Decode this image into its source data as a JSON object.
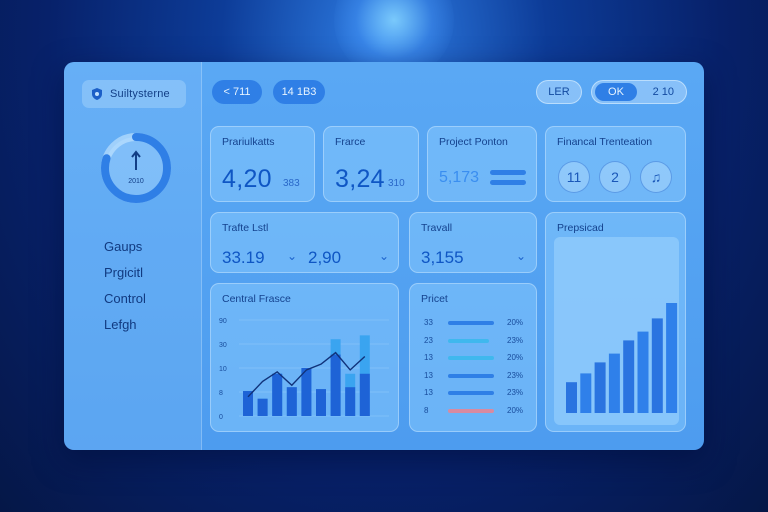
{
  "sidebar": {
    "logo_text": "Suiltysterne",
    "ring_value": "2010",
    "ring_icon": "up-arrow-icon",
    "ring_fraction": 0.8,
    "nav_items": [
      {
        "label": "Gaups"
      },
      {
        "label": "Prgicitl"
      },
      {
        "label": "Control"
      },
      {
        "label": "Lefgh"
      }
    ]
  },
  "topbar": {
    "pill_1": "< 711",
    "pill_2": "14 1B3",
    "pill_3": "LER",
    "pill_4": "OK",
    "pill_5": "2 10"
  },
  "cards": {
    "c1": {
      "title": "Prariulkatts",
      "value": "4,20",
      "sub": "383"
    },
    "c2": {
      "title": "Frarce",
      "value": "3,24",
      "sub": "310"
    },
    "c3": {
      "title": "Project Ponton",
      "value": "5,173"
    },
    "c4": {
      "title": "Financal Trenteation",
      "buttons": [
        "11",
        "2",
        "♫"
      ]
    },
    "c5": {
      "title": "Trafte Lstl",
      "value_1": "33.19",
      "value_2": "2,90"
    },
    "c6": {
      "title": "Travall",
      "value": "3,155"
    },
    "c7": {
      "title": "Prepsicad",
      "bars": [
        0.28,
        0.36,
        0.46,
        0.54,
        0.66,
        0.74,
        0.86,
        1.0
      ]
    },
    "c8": {
      "title": "Central Frasce"
    },
    "c9": {
      "title": "Pricet",
      "rows": [
        {
          "label": "33",
          "pct": "20%",
          "fill": 0.95,
          "color": "#2f7fe6"
        },
        {
          "label": "23",
          "pct": "23%",
          "fill": 0.85,
          "color": "#3fb8ee"
        },
        {
          "label": "13",
          "pct": "20%",
          "fill": 0.95,
          "color": "#3fb8ee"
        },
        {
          "label": "13",
          "pct": "23%",
          "fill": 0.95,
          "color": "#2f7fe6"
        },
        {
          "label": "13",
          "pct": "23%",
          "fill": 0.95,
          "color": "#2f7fe6"
        },
        {
          "label": "8",
          "pct": "20%",
          "fill": 0.95,
          "color": "#d98aa0"
        }
      ]
    }
  },
  "chart_data": {
    "type": "bar",
    "yticks": [
      "90",
      "30",
      "10",
      "8",
      "0"
    ],
    "ylim": [
      0,
      100
    ],
    "values_dark": [
      40,
      22,
      52,
      36,
      60,
      42,
      64,
      30,
      44
    ],
    "values_light": [
      26,
      18,
      44,
      30,
      50,
      28,
      80,
      44,
      84
    ],
    "line": [
      20,
      36,
      46,
      32,
      48,
      54,
      66,
      48,
      62
    ]
  }
}
